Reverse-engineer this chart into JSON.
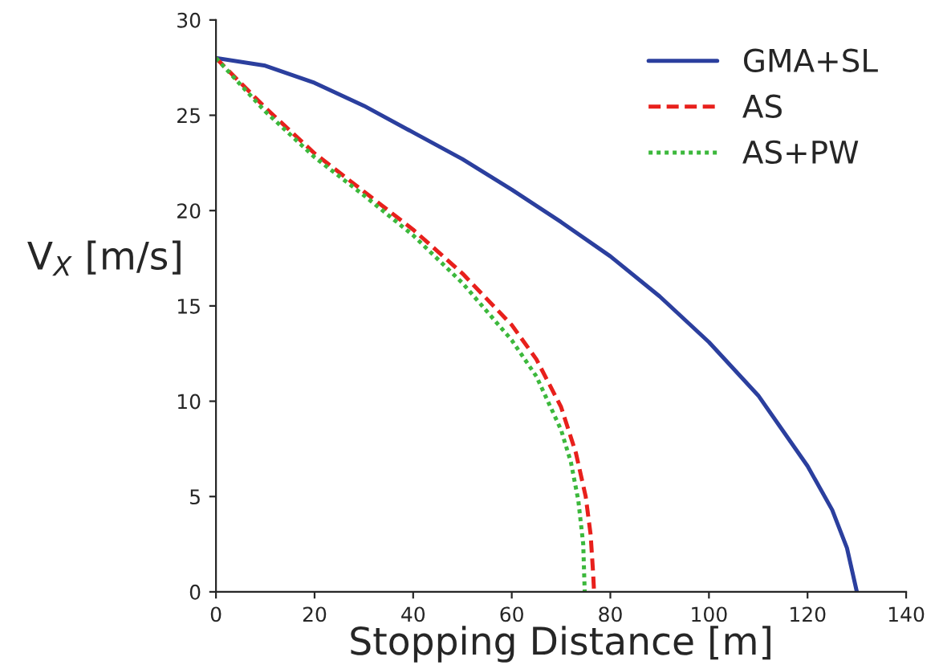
{
  "chart_data": {
    "type": "line",
    "xlabel": "Stopping Distance [m]",
    "ylabel": "V$_{X}$ [m/s]",
    "xlim": [
      0,
      140
    ],
    "ylim": [
      0,
      30
    ],
    "xticks": [
      0,
      20,
      40,
      60,
      80,
      100,
      120,
      140
    ],
    "yticks": [
      0,
      5,
      10,
      15,
      20,
      25,
      30
    ],
    "grid": false,
    "legend": "top right",
    "series": [
      {
        "name": "GMA+SL",
        "color": "#2b3f9e",
        "line_style": "solid",
        "x": [
          0,
          10,
          20,
          30,
          40,
          50,
          60,
          70,
          80,
          90,
          100,
          110,
          120,
          125,
          128,
          130
        ],
        "values": [
          28,
          27.6,
          26.7,
          25.5,
          24.1,
          22.7,
          21.1,
          19.4,
          17.6,
          15.5,
          13.1,
          10.3,
          6.6,
          4.3,
          2.3,
          0
        ]
      },
      {
        "name": "AS",
        "color": "#e8201c",
        "line_style": "dashed",
        "x": [
          0,
          10,
          20,
          30,
          40,
          50,
          60,
          65,
          70,
          73,
          75,
          76,
          76.5,
          76.7
        ],
        "values": [
          28,
          25.4,
          23,
          21,
          19,
          16.7,
          14,
          12.2,
          9.7,
          7.3,
          5,
          3,
          1,
          0
        ]
      },
      {
        "name": "AS+PW",
        "color": "#3cb83c",
        "line_style": "dotted",
        "x": [
          0,
          10,
          20,
          30,
          40,
          50,
          60,
          65,
          70,
          72,
          73.5,
          74.5,
          74.8
        ],
        "values": [
          28,
          25.2,
          22.8,
          20.8,
          18.7,
          16.2,
          13.2,
          11.3,
          8.5,
          6.8,
          4.8,
          2.5,
          0
        ]
      }
    ]
  }
}
